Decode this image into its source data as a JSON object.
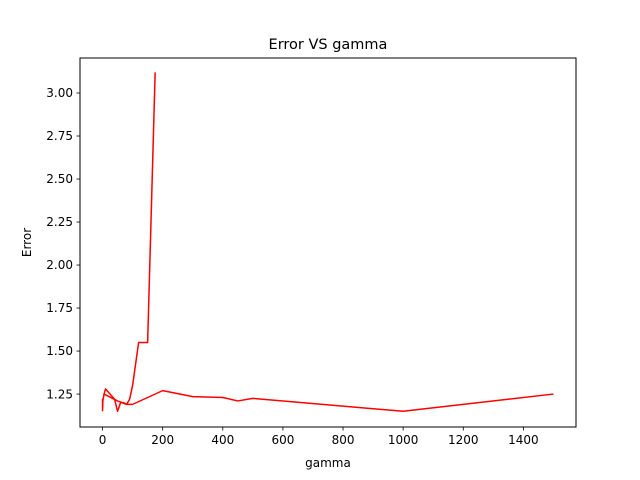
{
  "chart_data": {
    "type": "line",
    "title": "Error VS gamma",
    "xlabel": "gamma",
    "ylabel": "Error",
    "xlim": [
      -75,
      1575
    ],
    "ylim": [
      1.0585,
      3.2035
    ],
    "xticks": [
      0,
      200,
      400,
      600,
      800,
      1000,
      1200,
      1400
    ],
    "xtick_labels": [
      "0",
      "200",
      "400",
      "600",
      "800",
      "1000",
      "1200",
      "1400"
    ],
    "yticks": [
      1.25,
      1.5,
      1.75,
      2.0,
      2.25,
      2.5,
      2.75,
      3.0
    ],
    "ytick_labels": [
      "1.25",
      "1.50",
      "1.75",
      "2.00",
      "2.25",
      "2.50",
      "2.75",
      "3.00"
    ],
    "grid": false,
    "line_color": "#ff0000",
    "series": [
      {
        "x": [
          0.001,
          0.01,
          0.1,
          0.5,
          1,
          5,
          10,
          20,
          30,
          40,
          50,
          60,
          70,
          80,
          90,
          100,
          120,
          150,
          175
        ],
        "values": [
          1.15,
          1.22,
          1.16,
          1.18,
          1.21,
          1.25,
          1.28,
          1.26,
          1.24,
          1.22,
          1.15,
          1.2,
          1.2,
          1.19,
          1.22,
          1.3,
          1.55,
          1.55,
          3.12
        ]
      },
      {
        "x": [
          5,
          50,
          80,
          100,
          200,
          300,
          400,
          450,
          500,
          1000,
          1500
        ],
        "values": [
          1.25,
          1.21,
          1.19,
          1.19,
          1.27,
          1.235,
          1.23,
          1.21,
          1.225,
          1.15,
          1.25
        ]
      }
    ]
  }
}
